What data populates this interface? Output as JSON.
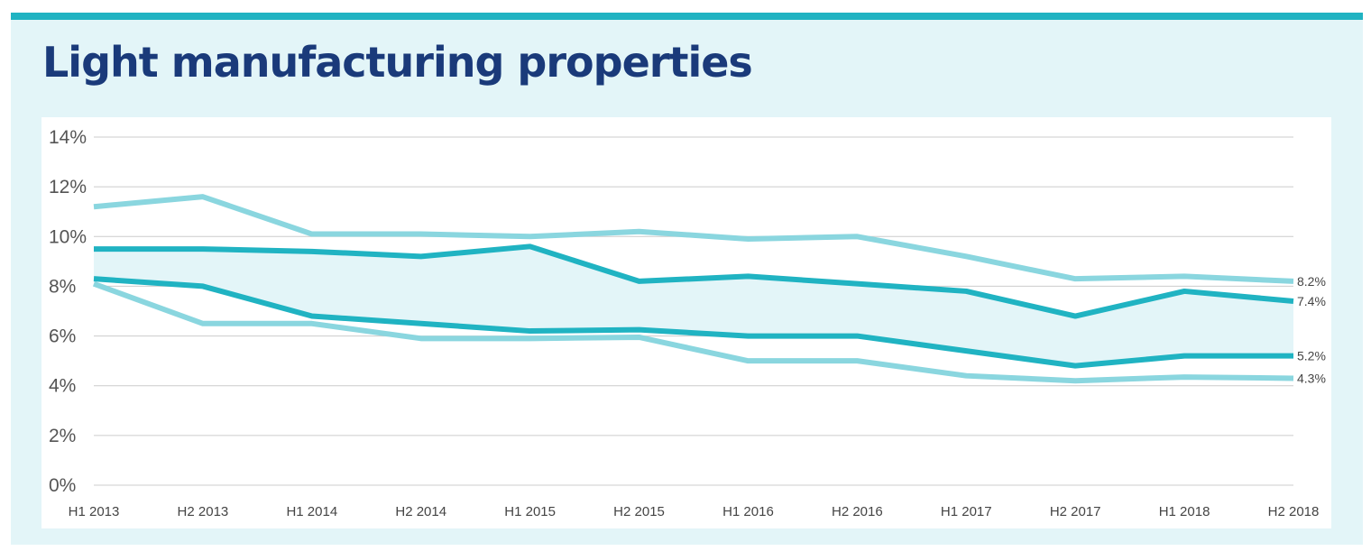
{
  "title": "Light manufacturing properties",
  "colors": {
    "accent": "#20b3c2",
    "panel": "#e3f5f8",
    "title": "#1a3a7a",
    "outer_series": "#8ad6df",
    "inner_series": "#20b3c2",
    "band_fill": "#e3f5f8",
    "grid": "#cccccc"
  },
  "chart_data": {
    "type": "line",
    "title": "Light manufacturing properties",
    "xlabel": "",
    "ylabel": "",
    "categories": [
      "H1 2013",
      "H2 2013",
      "H1 2014",
      "H2 2014",
      "H1 2015",
      "H2 2015",
      "H1 2016",
      "H2 2016",
      "H1 2017",
      "H2 2017",
      "H1 2018",
      "H2 2018"
    ],
    "ylim": [
      0,
      14
    ],
    "yticks": [
      0,
      2,
      4,
      6,
      8,
      10,
      12,
      14
    ],
    "ytick_labels": [
      "0%",
      "2%",
      "4%",
      "6%",
      "8%",
      "10%",
      "12%",
      "14%"
    ],
    "y_unit": "%",
    "grid": true,
    "legend": "none",
    "shaded_band_between_series": [
      1,
      2
    ],
    "series": [
      {
        "style": "light",
        "values": [
          11.2,
          11.6,
          10.1,
          10.1,
          10.0,
          10.2,
          9.9,
          10.0,
          9.2,
          8.3,
          8.4,
          8.2
        ],
        "end_label": "8.2%"
      },
      {
        "style": "dark",
        "values": [
          9.5,
          9.5,
          9.4,
          9.2,
          9.6,
          8.2,
          8.4,
          8.1,
          7.8,
          6.8,
          7.8,
          7.4
        ],
        "end_label": "7.4%"
      },
      {
        "style": "dark",
        "values": [
          8.3,
          8.0,
          6.8,
          6.5,
          6.2,
          6.25,
          6.0,
          6.0,
          5.4,
          4.8,
          5.2,
          5.2
        ],
        "end_label": "5.2%"
      },
      {
        "style": "light",
        "values": [
          8.1,
          6.5,
          6.5,
          5.9,
          5.9,
          5.95,
          5.0,
          5.0,
          4.4,
          4.2,
          4.35,
          4.3
        ],
        "end_label": "4.3%"
      }
    ]
  }
}
